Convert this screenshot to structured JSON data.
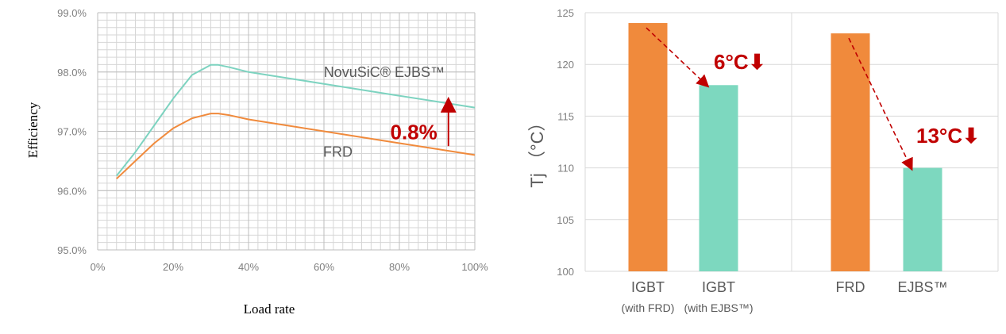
{
  "chart_data": [
    {
      "type": "line",
      "xlabel": "Load rate",
      "ylabel": "Efficiency",
      "xlim": [
        0,
        100
      ],
      "ylim": [
        95.0,
        99.0
      ],
      "x_ticks": [
        "0%",
        "20%",
        "40%",
        "60%",
        "80%",
        "100%"
      ],
      "y_ticks": [
        "95.0%",
        "96.0%",
        "97.0%",
        "98.0%",
        "99.0%"
      ],
      "grid": true,
      "series": [
        {
          "name": "NovuSiC® EJBS™",
          "color": "#7dd3c0",
          "x": [
            5,
            10,
            15,
            20,
            25,
            30,
            32,
            35,
            40,
            50,
            60,
            70,
            80,
            90,
            100
          ],
          "y": [
            96.25,
            96.65,
            97.1,
            97.55,
            97.95,
            98.12,
            98.12,
            98.08,
            98.0,
            97.9,
            97.8,
            97.7,
            97.6,
            97.5,
            97.4
          ]
        },
        {
          "name": "FRD",
          "color": "#f08a3c",
          "x": [
            5,
            10,
            15,
            20,
            25,
            30,
            32,
            35,
            40,
            50,
            60,
            70,
            80,
            90,
            100
          ],
          "y": [
            96.2,
            96.5,
            96.8,
            97.05,
            97.22,
            97.3,
            97.3,
            97.27,
            97.2,
            97.1,
            97.0,
            96.9,
            96.8,
            96.7,
            96.6
          ]
        }
      ],
      "annotations": [
        {
          "text": "0.8%",
          "color": "#c00000",
          "arrow": "up",
          "at_x": 93
        }
      ]
    },
    {
      "type": "bar",
      "ylabel": "Tj （°C）",
      "ylim": [
        100,
        125
      ],
      "y_ticks": [
        "100",
        "105",
        "110",
        "115",
        "120",
        "125"
      ],
      "grid": true,
      "groups": [
        {
          "bars": [
            {
              "label": "IGBT",
              "sublabel": "(with FRD)",
              "value": 124,
              "color": "#f08a3c"
            },
            {
              "label": "IGBT",
              "sublabel": "(with EJBS™)",
              "value": 118,
              "color": "#7dd8bf"
            }
          ],
          "annotation": {
            "text": "6°C⬇",
            "color": "#c00000"
          }
        },
        {
          "bars": [
            {
              "label": "FRD",
              "sublabel": "",
              "value": 123,
              "color": "#f08a3c"
            },
            {
              "label": "EJBS™",
              "sublabel": "",
              "value": 110,
              "color": "#7dd8bf"
            }
          ],
          "annotation": {
            "text": "13°C⬇",
            "color": "#c00000"
          }
        }
      ]
    }
  ]
}
